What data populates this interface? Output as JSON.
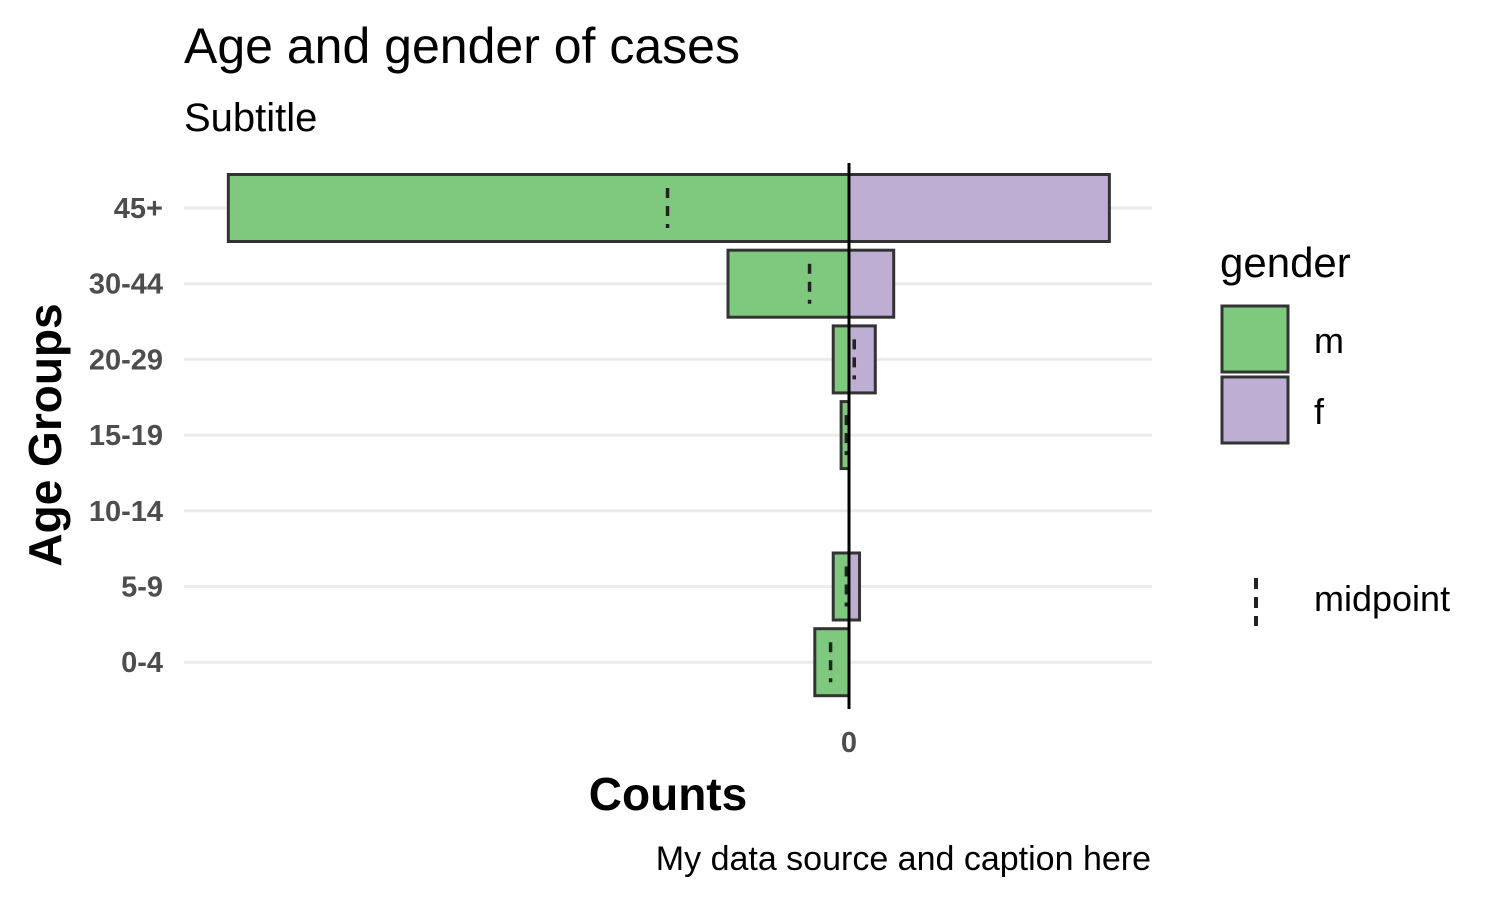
{
  "chart_data": {
    "type": "bar",
    "orientation": "horizontal",
    "subtype": "population-pyramid",
    "title": "Age and gender of cases",
    "subtitle": "Subtitle",
    "caption": "My data source and caption here",
    "xlabel": "Counts",
    "ylabel": "Age Groups",
    "xticks": [
      "0"
    ],
    "categories": [
      "0-4",
      "5-9",
      "10-14",
      "15-19",
      "20-29",
      "30-44",
      "45+"
    ],
    "xlim": [
      -235,
      115
    ],
    "series": [
      {
        "name": "m",
        "color": "#7fc97f",
        "values": [
          -13,
          -6,
          0,
          -3,
          -6,
          -46,
          -236
        ]
      },
      {
        "name": "f",
        "color": "#beaed4",
        "values": [
          0,
          4,
          0,
          0,
          10,
          17,
          99
        ]
      }
    ],
    "midpoint": [
      -7,
      -1,
      0,
      -1,
      2,
      -15,
      -69
    ],
    "legend": {
      "title": "gender",
      "position": "right",
      "items": [
        "m",
        "f"
      ],
      "line_label": "midpoint"
    },
    "grid": {
      "horizontal": true,
      "vertical": false
    },
    "zero_line": true
  }
}
